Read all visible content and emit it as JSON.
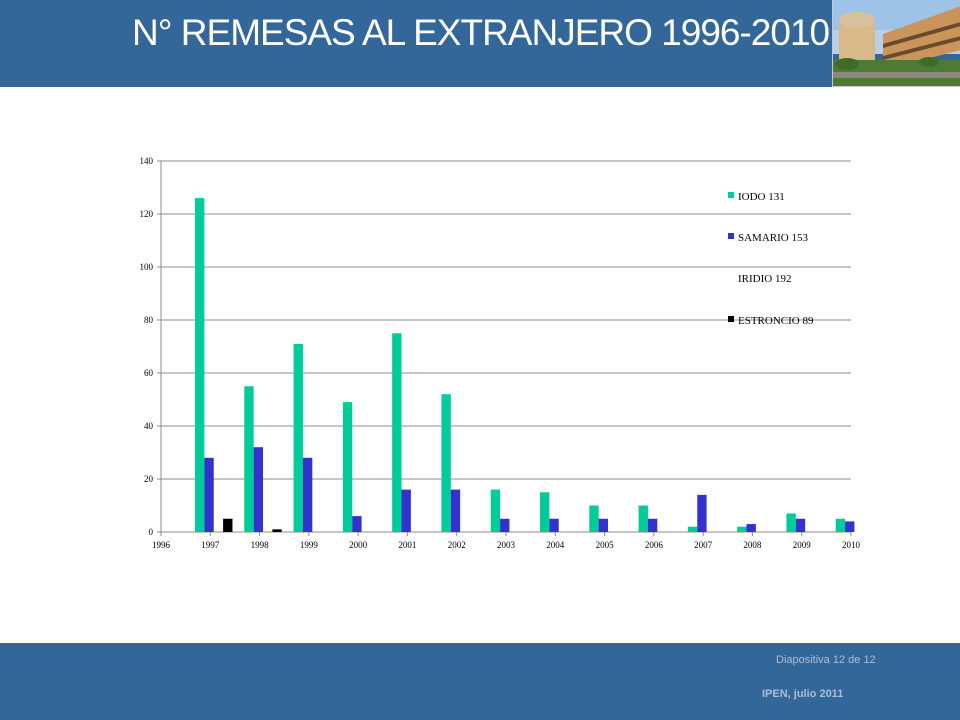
{
  "slide": {
    "title": "N° REMESAS AL EXTRANJERO 1996-2010",
    "footer_slide": "Diapositiva  12 de  12",
    "footer_org": "IPEN, julio 2011",
    "header_color": "#336699"
  },
  "chart_data": {
    "type": "bar",
    "x": [
      1997,
      1998,
      1999,
      2000,
      2001,
      2002,
      2003,
      2004,
      2005,
      2006,
      2007,
      2008,
      2009,
      2010
    ],
    "x_ticks": [
      1996,
      1997,
      1998,
      1999,
      2000,
      2001,
      2002,
      2003,
      2004,
      2005,
      2006,
      2007,
      2008,
      2009,
      2010
    ],
    "xlim": [
      1996,
      2010
    ],
    "ylim": [
      0,
      140
    ],
    "y_ticks": [
      0,
      20,
      40,
      60,
      80,
      100,
      120,
      140
    ],
    "grid": true,
    "legend_position": "top-right",
    "series": [
      {
        "name": "IODO 131",
        "color": "#00cc99",
        "values": [
          126,
          55,
          71,
          49,
          75,
          52,
          16,
          15,
          10,
          10,
          2,
          2,
          7,
          5
        ]
      },
      {
        "name": "SAMARIO 153",
        "color": "#3333cc",
        "values": [
          28,
          32,
          28,
          6,
          16,
          16,
          5,
          5,
          5,
          5,
          14,
          3,
          5,
          4
        ]
      },
      {
        "name": "IRIDIO 192",
        "color": "#ffffff",
        "values": [
          0,
          0,
          0,
          0,
          0,
          0,
          0,
          0,
          0,
          0,
          0,
          0,
          0,
          0
        ]
      },
      {
        "name": "ESTRONCIO 89",
        "color": "#000000",
        "values": [
          5,
          1,
          0,
          0,
          0,
          0,
          0,
          0,
          0,
          0,
          0,
          0,
          0,
          0
        ]
      }
    ]
  }
}
